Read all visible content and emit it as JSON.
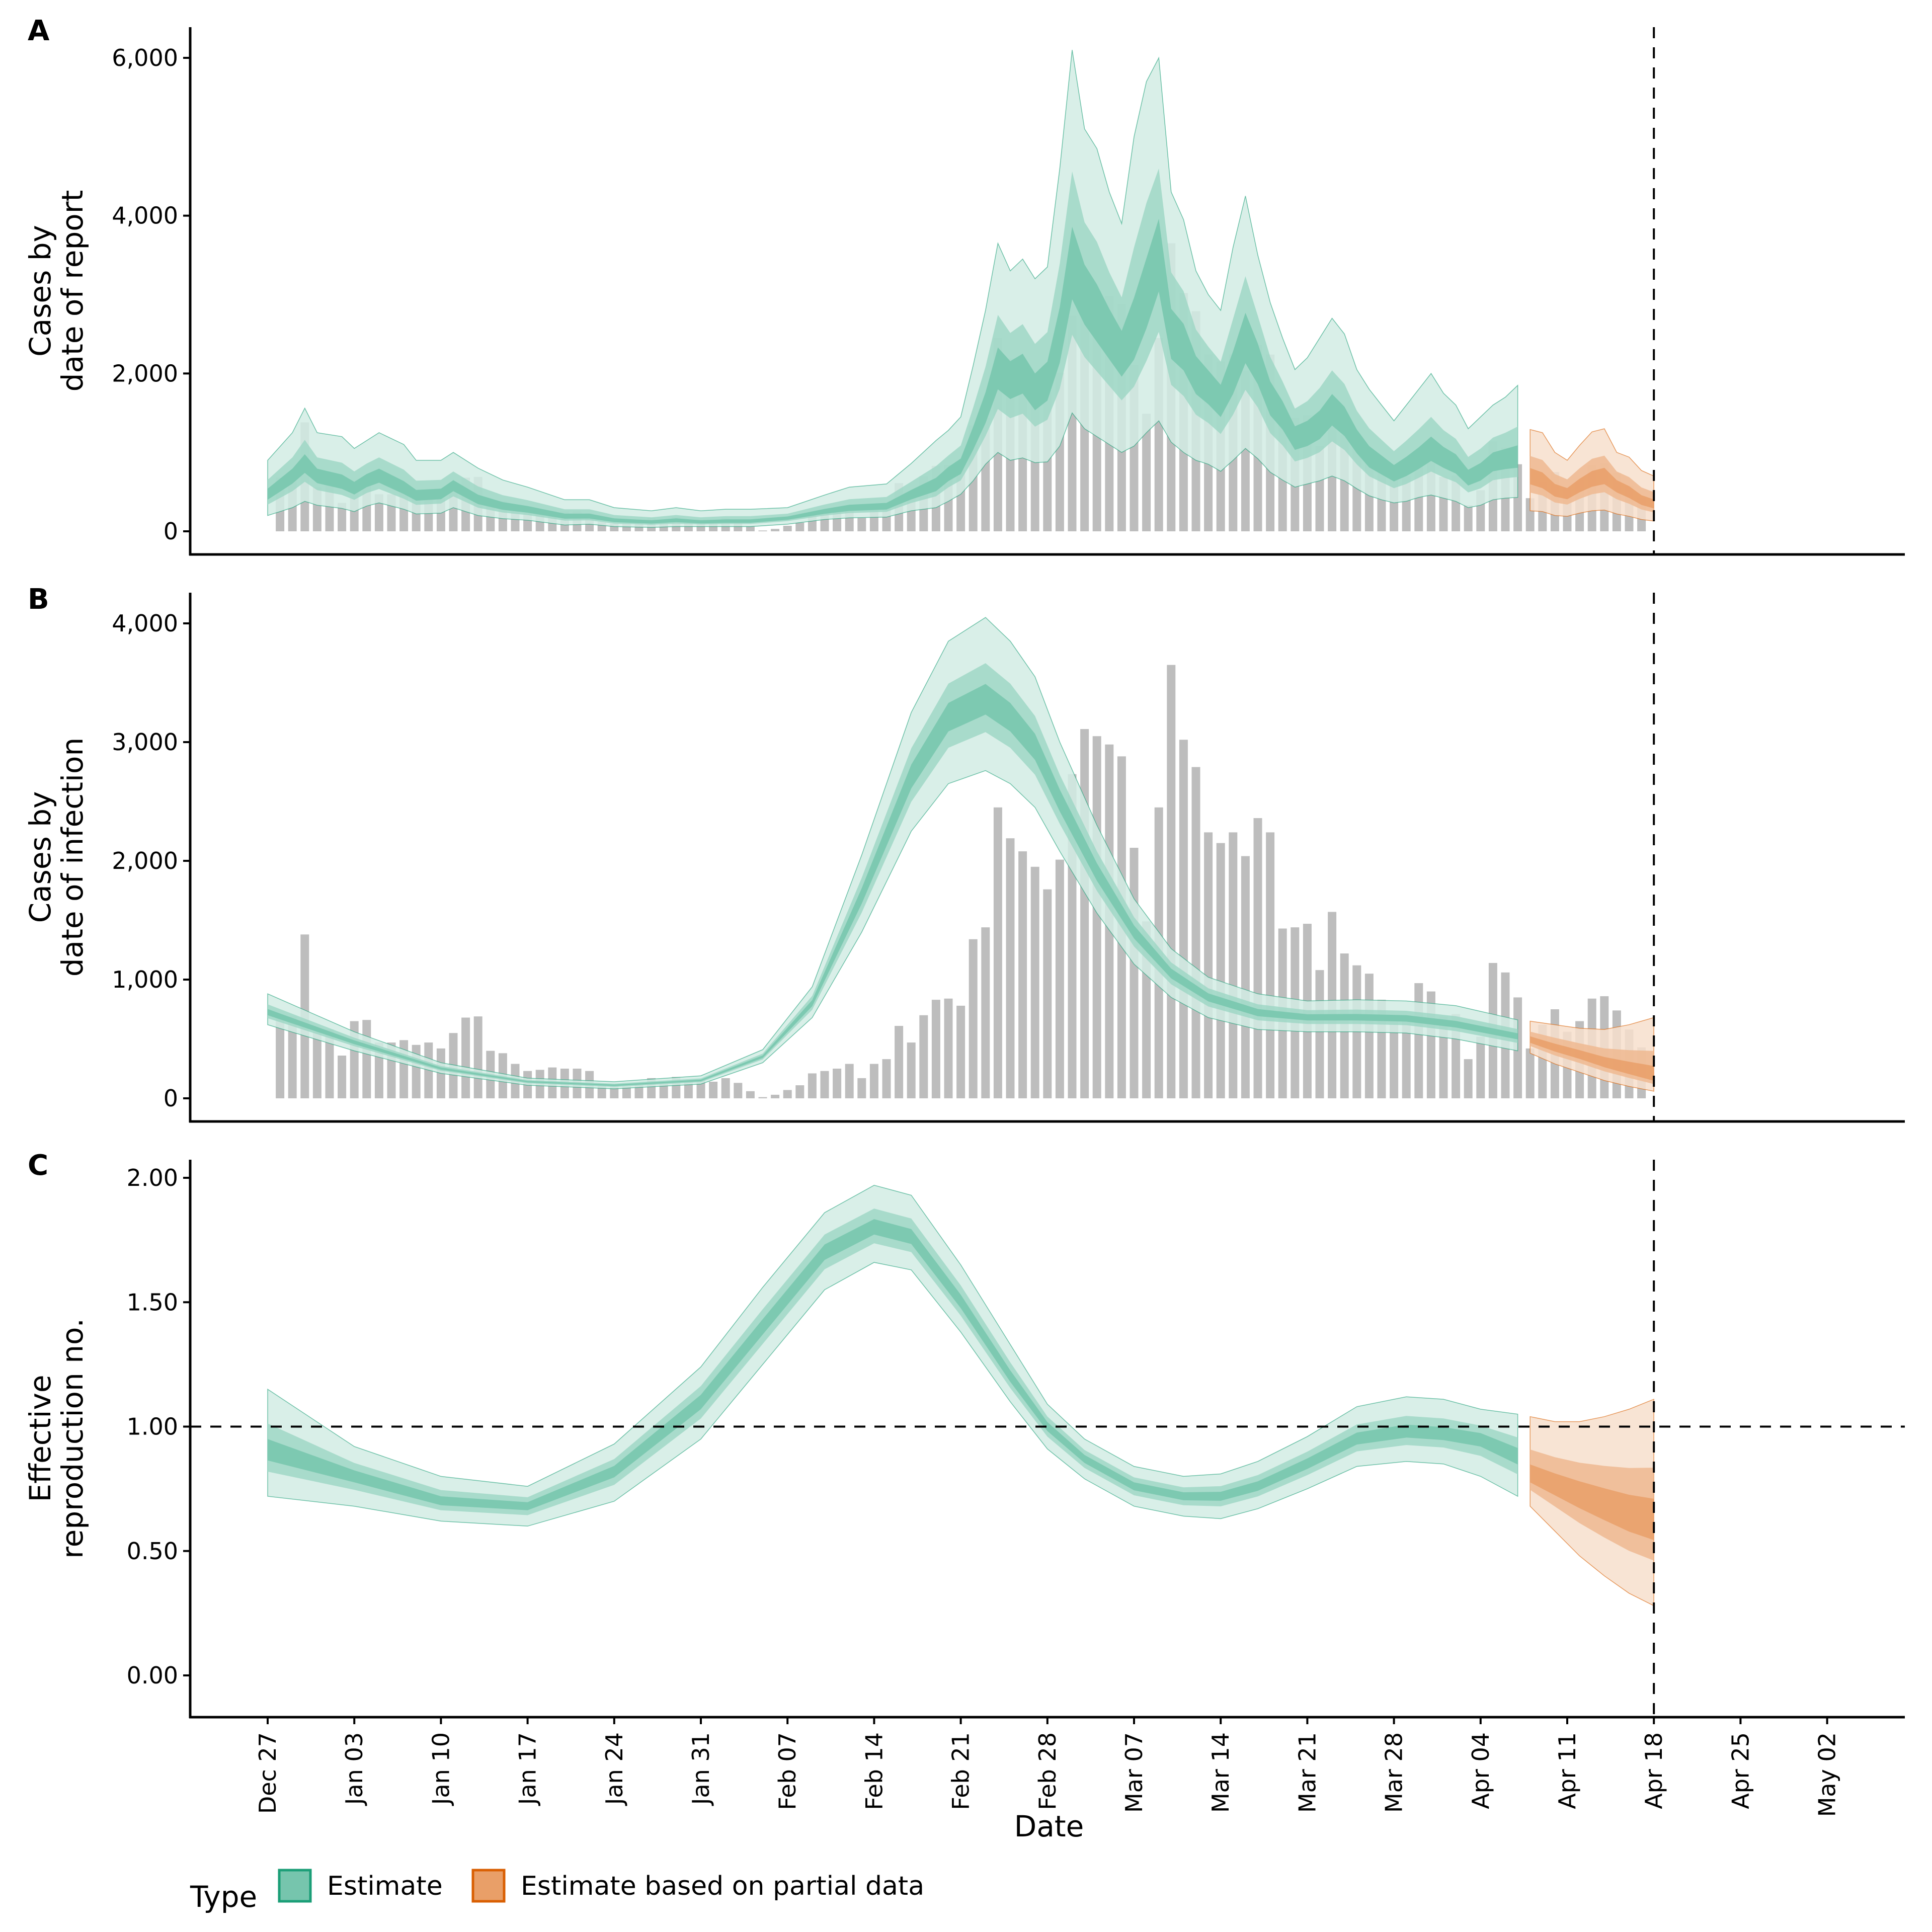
{
  "chart_data": {
    "type": "bar",
    "x_start_date": "Dec 27",
    "x_tick_labels": [
      "Dec 27",
      "Jan 03",
      "Jan 10",
      "Jan 17",
      "Jan 24",
      "Jan 31",
      "Feb 07",
      "Feb 14",
      "Feb 21",
      "Feb 28",
      "Mar 07",
      "Mar 14",
      "Mar 21",
      "Mar 28",
      "Apr 04",
      "Apr 11",
      "Apr 18",
      "Apr 25",
      "May 02"
    ],
    "x_tick_days": [
      0,
      7,
      14,
      21,
      28,
      35,
      42,
      49,
      56,
      63,
      70,
      77,
      84,
      91,
      98,
      105,
      112,
      119,
      126
    ],
    "x_range_days": [
      -5,
      135
    ],
    "xlabel": "Date",
    "vline_day": 112,
    "legend": {
      "title": "Type",
      "placement": "bottom-left",
      "entries": [
        {
          "label": "Estimate",
          "fill": "#76C5AD",
          "stroke": "#1B9E77"
        },
        {
          "label": "Estimate based on partial data",
          "fill": "#E99F68",
          "stroke": "#D95F02"
        }
      ]
    },
    "colors": {
      "bars": "#BDBDBD",
      "estimate": [
        "#D2ECE4",
        "#9FD7C5",
        "#76C5AD"
      ],
      "estimate_line": "#1B9E77",
      "partial": [
        "#F7DFCC",
        "#EFB991",
        "#E99F68"
      ],
      "partial_line": "#D95F02"
    },
    "observed_cases": {
      "start_day": 1,
      "values": [
        680,
        690,
        1380,
        560,
        580,
        360,
        650,
        660,
        470,
        470,
        490,
        450,
        470,
        420,
        550,
        680,
        690,
        400,
        380,
        290,
        230,
        240,
        260,
        250,
        250,
        230,
        120,
        100,
        100,
        120,
        170,
        140,
        180,
        150,
        150,
        140,
        170,
        130,
        60,
        10,
        30,
        70,
        110,
        210,
        230,
        250,
        290,
        170,
        290,
        330,
        610,
        470,
        700,
        830,
        840,
        780,
        1340,
        1440,
        2450,
        2190,
        2080,
        1950,
        1760,
        2010,
        2730,
        3110,
        3050,
        2980,
        2880,
        2110,
        1490,
        2450,
        3650,
        3020,
        2790,
        2240,
        2150,
        2240,
        2040,
        2360,
        2240,
        1430,
        1440,
        1470,
        1080,
        1570,
        1220,
        1120,
        1050,
        830,
        700,
        700,
        970,
        900,
        690,
        710,
        330,
        520,
        1140,
        1060,
        850,
        420,
        620,
        750,
        560,
        650,
        840,
        860,
        740,
        580,
        430
      ]
    },
    "panels": [
      {
        "id": "A",
        "ylabel": [
          "Cases by",
          "date of report"
        ],
        "y_ticks": [
          0,
          2000,
          4000,
          6000
        ],
        "y_tick_labels": [
          "0",
          "2,000",
          "4,000",
          "6,000"
        ],
        "ylim": [
          -300,
          6400
        ],
        "hline": null,
        "estimate": {
          "days": [
            0,
            2,
            3,
            4,
            6,
            7,
            8,
            9,
            11,
            12,
            14,
            15,
            17,
            19,
            21,
            24,
            26,
            28,
            31,
            33,
            35,
            37,
            39,
            42,
            45,
            47,
            50,
            52,
            54,
            55,
            56,
            57,
            58,
            59,
            60,
            61,
            62,
            63,
            64,
            65,
            66,
            67,
            68,
            69,
            70,
            71,
            72,
            73,
            74,
            75,
            76,
            77,
            78,
            79,
            80,
            81,
            82,
            83,
            84,
            85,
            86,
            87,
            88,
            89,
            90,
            91,
            92,
            93,
            94,
            95,
            96,
            97,
            98,
            99,
            100,
            101
          ],
          "median": [
            450,
            680,
            830,
            680,
            600,
            520,
            620,
            680,
            520,
            430,
            450,
            560,
            380,
            300,
            260,
            180,
            180,
            130,
            110,
            130,
            110,
            120,
            120,
            160,
            240,
            280,
            300,
            440,
            560,
            700,
            790,
            1130,
            1500,
            2000,
            1870,
            1950,
            1700,
            1850,
            2400,
            3300,
            2950,
            2700,
            2450,
            2200,
            2450,
            2900,
            3450,
            2450,
            2300,
            1950,
            1800,
            1620,
            1950,
            2400,
            2100,
            1650,
            1450,
            1150,
            1200,
            1300,
            1500,
            1350,
            1100,
            900,
            800,
            700,
            780,
            880,
            1000,
            900,
            820,
            650,
            720,
            850,
            880,
            900
          ],
          "lower90": [
            200,
            300,
            380,
            330,
            290,
            250,
            320,
            360,
            280,
            220,
            230,
            300,
            200,
            160,
            140,
            80,
            90,
            60,
            50,
            60,
            60,
            60,
            60,
            90,
            150,
            170,
            180,
            260,
            300,
            380,
            470,
            640,
            850,
            1000,
            900,
            930,
            870,
            880,
            1080,
            1500,
            1300,
            1200,
            1100,
            1000,
            1080,
            1250,
            1400,
            1130,
            1000,
            900,
            850,
            760,
            900,
            1050,
            920,
            750,
            650,
            560,
            600,
            640,
            700,
            640,
            540,
            450,
            400,
            360,
            380,
            430,
            460,
            420,
            380,
            300,
            330,
            400,
            420,
            430
          ],
          "upper90": [
            900,
            1250,
            1560,
            1250,
            1200,
            1050,
            1150,
            1250,
            1100,
            900,
            900,
            1000,
            800,
            650,
            560,
            400,
            400,
            300,
            260,
            300,
            260,
            280,
            280,
            300,
            460,
            560,
            600,
            860,
            1150,
            1280,
            1450,
            2100,
            2800,
            3650,
            3300,
            3450,
            3200,
            3350,
            4600,
            6100,
            5100,
            4850,
            4300,
            3900,
            5000,
            5700,
            6000,
            4300,
            3950,
            3300,
            3000,
            2800,
            3600,
            4250,
            3500,
            2900,
            2450,
            2050,
            2200,
            2450,
            2700,
            2500,
            2050,
            1800,
            1600,
            1400,
            1600,
            1800,
            2000,
            1750,
            1600,
            1300,
            1450,
            1600,
            1700,
            1850
          ]
        },
        "partial": {
          "days": [
            102,
            103,
            104,
            105,
            106,
            107,
            108,
            109,
            110,
            111,
            112
          ],
          "median": [
            680,
            620,
            500,
            460,
            560,
            640,
            680,
            560,
            480,
            380,
            330
          ],
          "lower90": [
            260,
            250,
            200,
            190,
            230,
            260,
            270,
            220,
            190,
            150,
            130
          ],
          "upper90": [
            1290,
            1250,
            1000,
            900,
            1090,
            1260,
            1300,
            1000,
            940,
            770,
            700
          ]
        }
      },
      {
        "id": "B",
        "ylabel": [
          "Cases by",
          "date of infection"
        ],
        "y_ticks": [
          0,
          1000,
          2000,
          3000,
          4000
        ],
        "y_tick_labels": [
          "0",
          "1,000",
          "2,000",
          "3,000",
          "4,000"
        ],
        "ylim": [
          -200,
          4250
        ],
        "hline": null,
        "estimate": {
          "days": [
            0,
            7,
            14,
            21,
            28,
            35,
            40,
            44,
            48,
            52,
            55,
            58,
            60,
            62,
            64,
            67,
            70,
            73,
            76,
            80,
            84,
            88,
            92,
            96,
            101
          ],
          "median": [
            720,
            470,
            250,
            140,
            110,
            150,
            350,
            800,
            1700,
            2700,
            3200,
            3350,
            3200,
            2950,
            2500,
            1900,
            1400,
            1050,
            850,
            720,
            680,
            680,
            670,
            620,
            520
          ],
          "lower90": [
            620,
            400,
            210,
            110,
            80,
            120,
            300,
            680,
            1400,
            2250,
            2650,
            2760,
            2650,
            2450,
            2080,
            1560,
            1130,
            850,
            680,
            580,
            560,
            560,
            550,
            500,
            400
          ],
          "upper90": [
            880,
            560,
            300,
            170,
            140,
            190,
            410,
            940,
            2050,
            3250,
            3850,
            4050,
            3850,
            3550,
            3000,
            2300,
            1680,
            1260,
            1020,
            880,
            820,
            830,
            820,
            780,
            660
          ]
        },
        "partial": {
          "days": [
            102,
            104,
            106,
            108,
            110,
            112
          ],
          "median": [
            490,
            420,
            360,
            290,
            230,
            170
          ],
          "lower90": [
            380,
            290,
            220,
            150,
            100,
            60
          ],
          "upper90": [
            650,
            620,
            590,
            580,
            620,
            680
          ]
        }
      },
      {
        "id": "C",
        "ylabel": [
          "Effective",
          "reproduction no."
        ],
        "y_ticks": [
          0,
          0.5,
          1,
          1.5,
          2
        ],
        "y_tick_labels": [
          "0.00",
          "0.50",
          "1.00",
          "1.50",
          "2.00"
        ],
        "ylim": [
          -0.05,
          2.07
        ],
        "hline": 1.0,
        "estimate": {
          "days": [
            0,
            7,
            14,
            21,
            28,
            35,
            40,
            45,
            49,
            52,
            56,
            60,
            63,
            66,
            70,
            74,
            77,
            80,
            84,
            88,
            92,
            95,
            98,
            101
          ],
          "median": [
            0.9,
            0.8,
            0.7,
            0.68,
            0.82,
            1.1,
            1.4,
            1.7,
            1.8,
            1.76,
            1.5,
            1.2,
            1.0,
            0.87,
            0.76,
            0.72,
            0.72,
            0.76,
            0.85,
            0.95,
            0.98,
            0.97,
            0.95,
            0.88
          ],
          "lower90": [
            0.72,
            0.68,
            0.62,
            0.6,
            0.7,
            0.95,
            1.25,
            1.55,
            1.66,
            1.63,
            1.38,
            1.1,
            0.91,
            0.79,
            0.68,
            0.64,
            0.63,
            0.67,
            0.75,
            0.84,
            0.86,
            0.85,
            0.8,
            0.72
          ],
          "upper90": [
            1.15,
            0.92,
            0.8,
            0.76,
            0.93,
            1.24,
            1.56,
            1.86,
            1.97,
            1.93,
            1.65,
            1.33,
            1.09,
            0.95,
            0.84,
            0.8,
            0.81,
            0.86,
            0.96,
            1.08,
            1.12,
            1.11,
            1.07,
            1.05
          ]
        },
        "partial": {
          "days": [
            102,
            104,
            106,
            108,
            110,
            112
          ],
          "median": [
            0.8,
            0.76,
            0.72,
            0.68,
            0.64,
            0.61
          ],
          "lower90": [
            0.68,
            0.58,
            0.48,
            0.4,
            0.33,
            0.28
          ],
          "upper90": [
            1.04,
            1.02,
            1.02,
            1.04,
            1.07,
            1.11
          ]
        }
      }
    ]
  }
}
